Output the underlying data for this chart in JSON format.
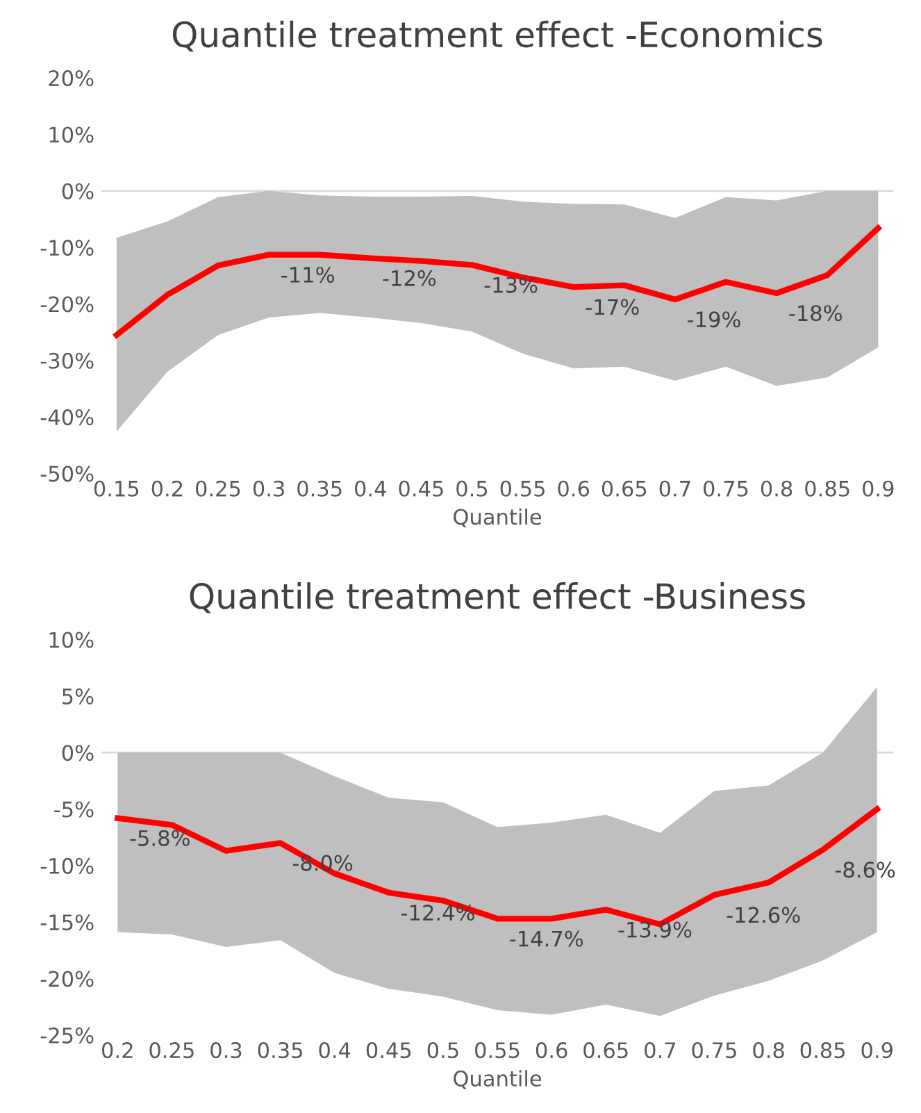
{
  "chart_data": [
    {
      "type": "line",
      "title": "Quantile treatment effect -Economics",
      "xlabel": "Quantile",
      "categories": [
        "0.15",
        "0.2",
        "0.25",
        "0.3",
        "0.35",
        "0.4",
        "0.45",
        "0.5",
        "0.55",
        "0.6",
        "0.65",
        "0.7",
        "0.75",
        "0.8",
        "0.85",
        "0.9"
      ],
      "series": [
        {
          "color": "#ff0000",
          "values": [
            -25.5,
            -18.4,
            -13.2,
            -11.3,
            -11.3,
            -11.9,
            -12.4,
            -13.1,
            -15.3,
            -17.0,
            -16.7,
            -19.2,
            -16.1,
            -18.1,
            -14.9,
            -6.6
          ],
          "lower": [
            -42.6,
            -32.0,
            -25.5,
            -22.4,
            -21.6,
            -22.4,
            -23.4,
            -24.9,
            -28.8,
            -31.4,
            -31.1,
            -33.6,
            -31.1,
            -34.5,
            -33.0,
            -27.7
          ],
          "upper": [
            -8.3,
            -5.4,
            -1.1,
            0,
            -0.8,
            -1.0,
            -1.0,
            -0.9,
            -1.9,
            -2.3,
            -2.4,
            -4.8,
            -1.1,
            -1.7,
            0,
            0
          ],
          "value_labels": [
            null,
            null,
            null,
            "-11%",
            null,
            "-12%",
            null,
            "-13%",
            null,
            "-17%",
            null,
            "-19%",
            null,
            "-18%",
            null,
            null
          ]
        }
      ],
      "ylim": [
        -50,
        20
      ],
      "yticks": [
        {
          "value": -50,
          "label": "-50%"
        },
        {
          "value": -40,
          "label": "-40%"
        },
        {
          "value": -30,
          "label": "-30%"
        },
        {
          "value": -20,
          "label": "-20%"
        },
        {
          "value": -10,
          "label": "-10%"
        },
        {
          "value": 0,
          "label": "0%"
        },
        {
          "value": 10,
          "label": "10%"
        },
        {
          "value": 20,
          "label": "20%"
        }
      ],
      "ref_lines": [
        {
          "axis": "y",
          "value": 0,
          "color": "#d9d9d9"
        }
      ],
      "grid": false,
      "marker": "none",
      "line_style": "solid"
    },
    {
      "type": "line",
      "title": "Quantile treatment effect -Business",
      "xlabel": "Quantile",
      "categories": [
        "0.2",
        "0.25",
        "0.3",
        "0.35",
        "0.4",
        "0.45",
        "0.5",
        "0.55",
        "0.6",
        "0.65",
        "0.7",
        "0.75",
        "0.8",
        "0.85",
        "0.9"
      ],
      "series": [
        {
          "color": "#ff0000",
          "values": [
            -5.8,
            -6.4,
            -8.7,
            -8.0,
            -10.7,
            -12.4,
            -13.1,
            -14.7,
            -14.7,
            -13.9,
            -15.2,
            -12.6,
            -11.5,
            -8.6,
            -5.0
          ],
          "lower": [
            -15.9,
            -16.1,
            -17.2,
            -16.6,
            -19.5,
            -20.9,
            -21.6,
            -22.8,
            -23.2,
            -22.3,
            -23.3,
            -21.5,
            -20.2,
            -18.4,
            -15.9
          ],
          "upper": [
            0,
            0,
            0,
            0,
            -2.1,
            -4.0,
            -4.4,
            -6.6,
            -6.2,
            -5.5,
            -7.1,
            -3.4,
            -2.9,
            0,
            5.8
          ],
          "value_labels": [
            "-5.8%",
            null,
            null,
            "-8.0%",
            null,
            "-12.4%",
            null,
            "-14.7%",
            null,
            "-13.9%",
            null,
            "-12.6%",
            null,
            "-8.6%",
            null
          ]
        }
      ],
      "ylim": [
        -25,
        10
      ],
      "yticks": [
        {
          "value": -25,
          "label": "-25%"
        },
        {
          "value": -20,
          "label": "-20%"
        },
        {
          "value": -15,
          "label": "-15%"
        },
        {
          "value": -10,
          "label": "-10%"
        },
        {
          "value": -5,
          "label": "-5%"
        },
        {
          "value": 0,
          "label": "0%"
        },
        {
          "value": 5,
          "label": "5%"
        },
        {
          "value": 10,
          "label": "10%"
        }
      ],
      "ref_lines": [
        {
          "axis": "y",
          "value": 0,
          "color": "#d9d9d9"
        }
      ],
      "grid": false,
      "marker": "none",
      "line_style": "solid"
    }
  ]
}
